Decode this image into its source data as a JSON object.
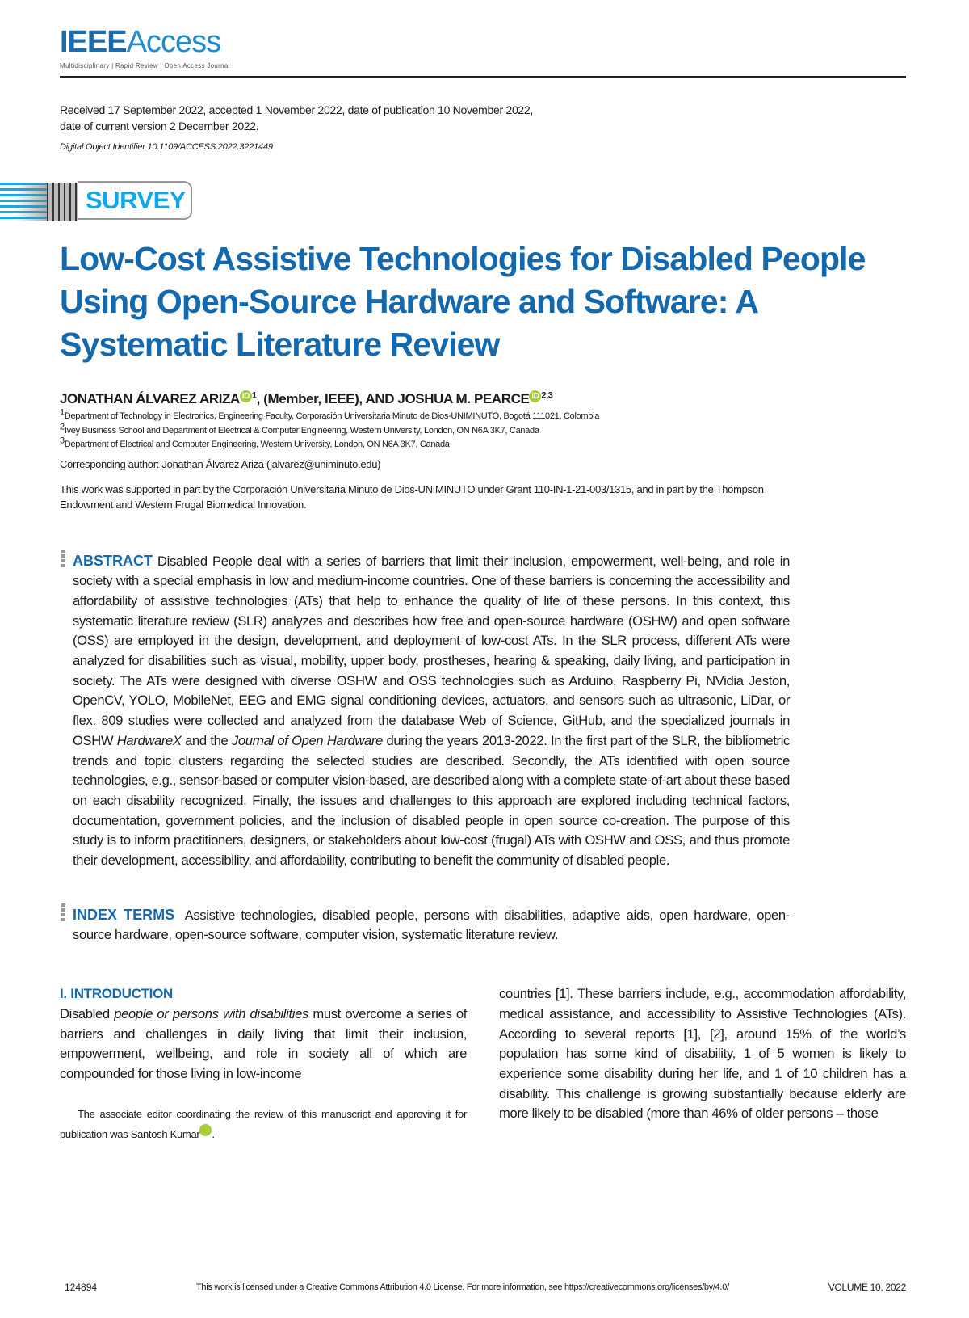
{
  "header": {
    "logo_ieee": "IEEE",
    "logo_access": "Access",
    "tagline": "Multidisciplinary | Rapid Review | Open Access Journal"
  },
  "meta": {
    "received_line1": "Received 17 September 2022, accepted 1 November 2022, date of publication 10 November 2022,",
    "received_line2": "date of current version 2 December 2022.",
    "doi": "Digital Object Identifier 10.1109/ACCESS.2022.3221449"
  },
  "banner": {
    "label": "SURVEY"
  },
  "title": "Low-Cost Assistive Technologies for Disabled People Using Open-Source Hardware and Software: A Systematic Literature Review",
  "authors": {
    "author1": "JONATHAN ÁLVAREZ ARIZA",
    "author1_sup": "1",
    "member": ", (Member, IEEE), AND JOSHUA M. PEARCE",
    "author2_sup": "2,3",
    "orcid_glyph": "iD",
    "affiliations": [
      {
        "sup": "1",
        "text": "Department of Technology in Electronics, Engineering Faculty, Corporación Universitaria Minuto de Dios-UNIMINUTO, Bogotá 111021, Colombia"
      },
      {
        "sup": "2",
        "text": "Ivey Business School and Department of Electrical & Computer Engineering, Western University, London, ON N6A 3K7, Canada"
      },
      {
        "sup": "3",
        "text": "Department of Electrical and Computer Engineering, Western University, London, ON N6A 3K7, Canada"
      }
    ],
    "corresponding": "Corresponding author: Jonathan Álvarez Ariza (jalvarez@uniminuto.edu)"
  },
  "support": "This work was supported in part by the Corporación Universitaria Minuto de Dios-UNIMINUTO under Grant 110-IN-1-21-003/1315, and in part by the Thompson Endowment and Western Frugal Biomedical Innovation.",
  "abstract": {
    "label": "ABSTRACT",
    "text1": "Disabled People deal with a series of barriers that limit their inclusion, empowerment, well-being, and role in society with a special emphasis in low and medium-income countries. One of these barriers is concerning the accessibility and affordability of assistive technologies (ATs) that help to enhance the quality of life of these persons. In this context, this systematic literature review (SLR) analyzes and describes how free and open-source hardware (OSHW) and open software (OSS) are employed in the design, development, and deployment of low-cost ATs. In the SLR process, different ATs were analyzed for disabilities such as visual, mobility, upper body, prostheses, hearing & speaking, daily living, and participation in society. The ATs were designed with diverse OSHW and OSS technologies such as Arduino, Raspberry Pi, NVidia Jeston, OpenCV, YOLO, MobileNet, EEG and EMG signal conditioning devices, actuators, and sensors such as ultrasonic, LiDar, or flex. 809 studies were collected and analyzed from the database Web of Science, GitHub, and the specialized journals in OSHW ",
    "italic1": "HardwareX",
    "text2": " and the ",
    "italic2": "Journal of Open Hardware",
    "text3": " during the years 2013-2022. In the first part of the SLR, the bibliometric trends and topic clusters regarding the selected studies are described. Secondly, the ATs identified with open source technologies, e.g., sensor-based or computer vision-based, are described along with a complete state-of-art about these based on each disability recognized. Finally, the issues and challenges to this approach are explored including technical factors, documentation, government policies, and the inclusion of disabled people in open source co-creation. The purpose of this study is to inform practitioners, designers, or stakeholders about low-cost (frugal) ATs with OSHW and OSS, and thus promote their development, accessibility, and affordability, contributing to benefit the community of disabled people."
  },
  "index_terms": {
    "label": "INDEX TERMS",
    "text": "Assistive technologies, disabled people, persons with disabilities, adaptive aids, open hardware, open-source hardware, open-source software, computer vision, systematic literature review."
  },
  "introduction": {
    "heading": "I. INTRODUCTION",
    "left_pre": "Disabled ",
    "left_italic": "people or persons with disabilities",
    "left_post": " must overcome a series of barriers and challenges in daily living that limit their inclusion, empowerment, wellbeing, and role in society all of which are compounded for those living in low-income",
    "right": "countries [1]. These barriers include, e.g., accommodation affordability, medical assistance, and accessibility to Assistive Technologies (ATs). According to several reports [1], [2], around 15% of the world’s population has some kind of disability, 1 of 5 women is likely to experience some disability during her life, and 1 of 10 children has a disability. This challenge is growing substantially because elderly are more likely to be disabled (more than 46% of older persons – those",
    "footnote": "The associate editor coordinating the review of this manuscript and approving it for publication was Santosh Kumar",
    "footnote_end": "."
  },
  "footer": {
    "page": "124894",
    "license": "This work is licensed under a Creative Commons Attribution 4.0 License. For more information, see https://creativecommons.org/licenses/by/4.0/",
    "volume": "VOLUME 10, 2022"
  },
  "colors": {
    "title_blue": "#1468ad",
    "survey_cyan": "#12a7e8",
    "orcid_green": "#a6ce39"
  }
}
